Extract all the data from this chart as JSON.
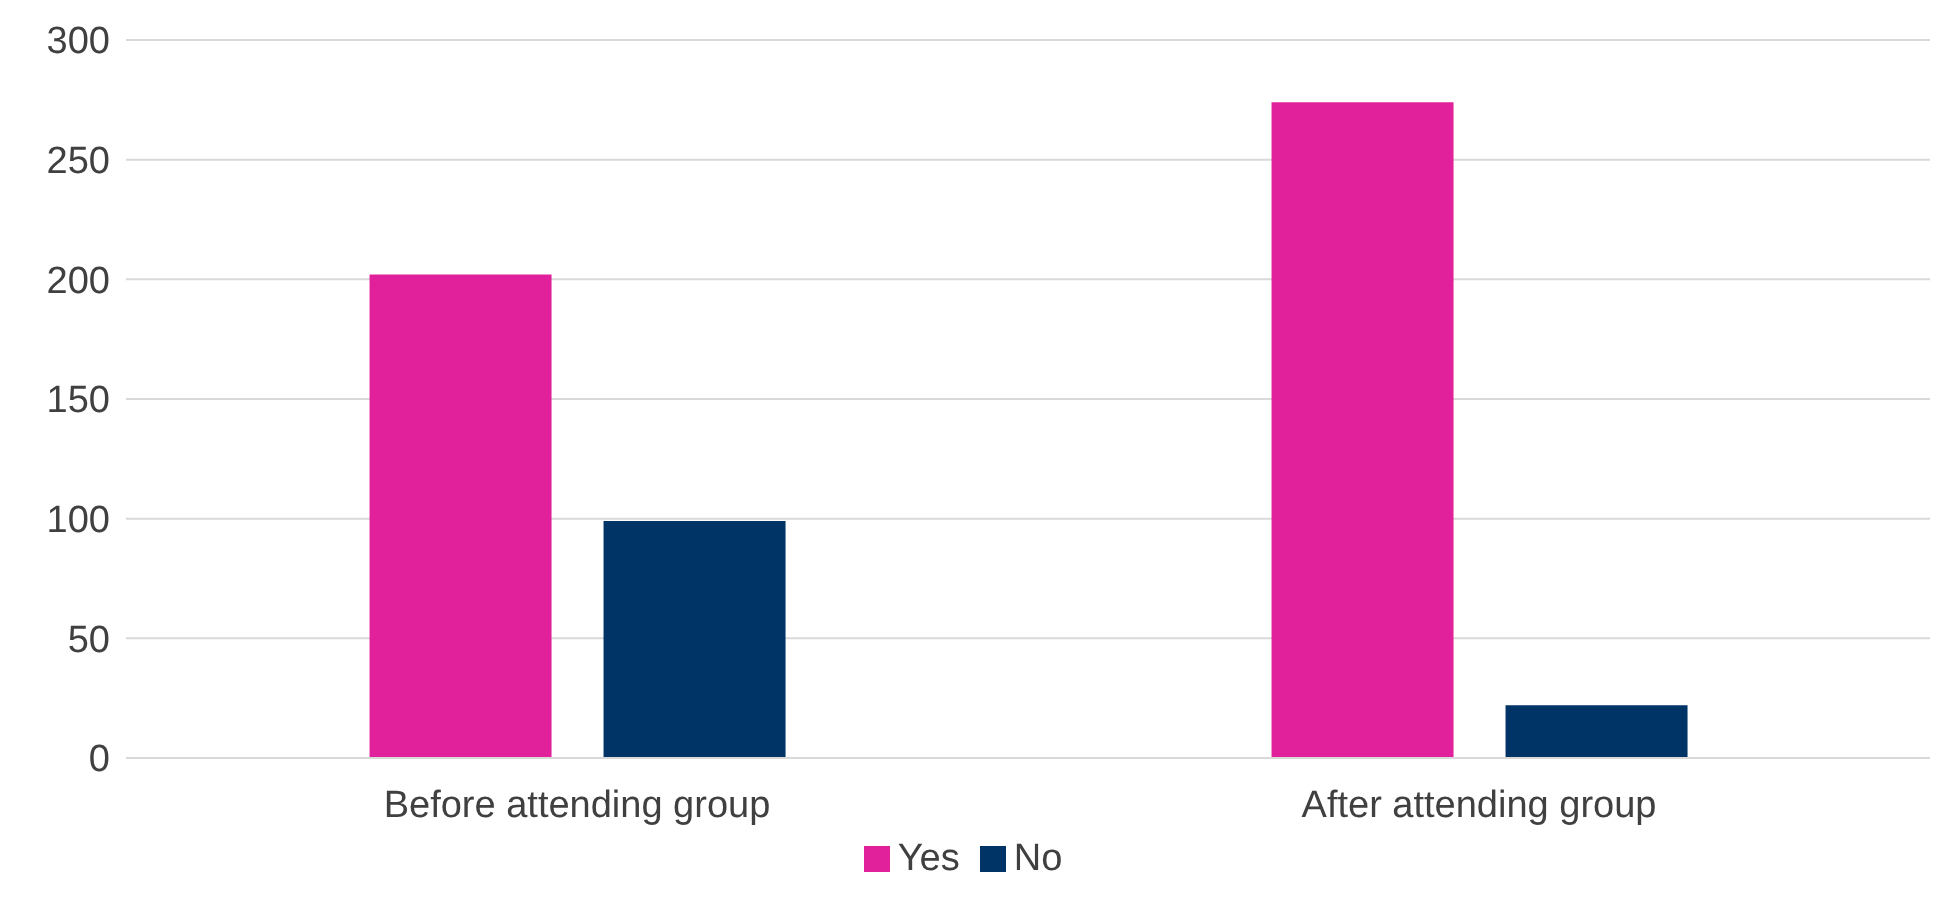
{
  "chart_data": {
    "type": "bar",
    "categories": [
      "Before attending group",
      "After attending group"
    ],
    "series": [
      {
        "name": "Yes",
        "color": "#e0219b",
        "values": [
          202,
          274
        ]
      },
      {
        "name": "No",
        "color": "#003366",
        "values": [
          99,
          22
        ]
      }
    ],
    "ylim": [
      0,
      300
    ],
    "yticks": [
      0,
      50,
      100,
      150,
      200,
      250,
      300
    ],
    "grid": "y",
    "legend": "bottom"
  }
}
